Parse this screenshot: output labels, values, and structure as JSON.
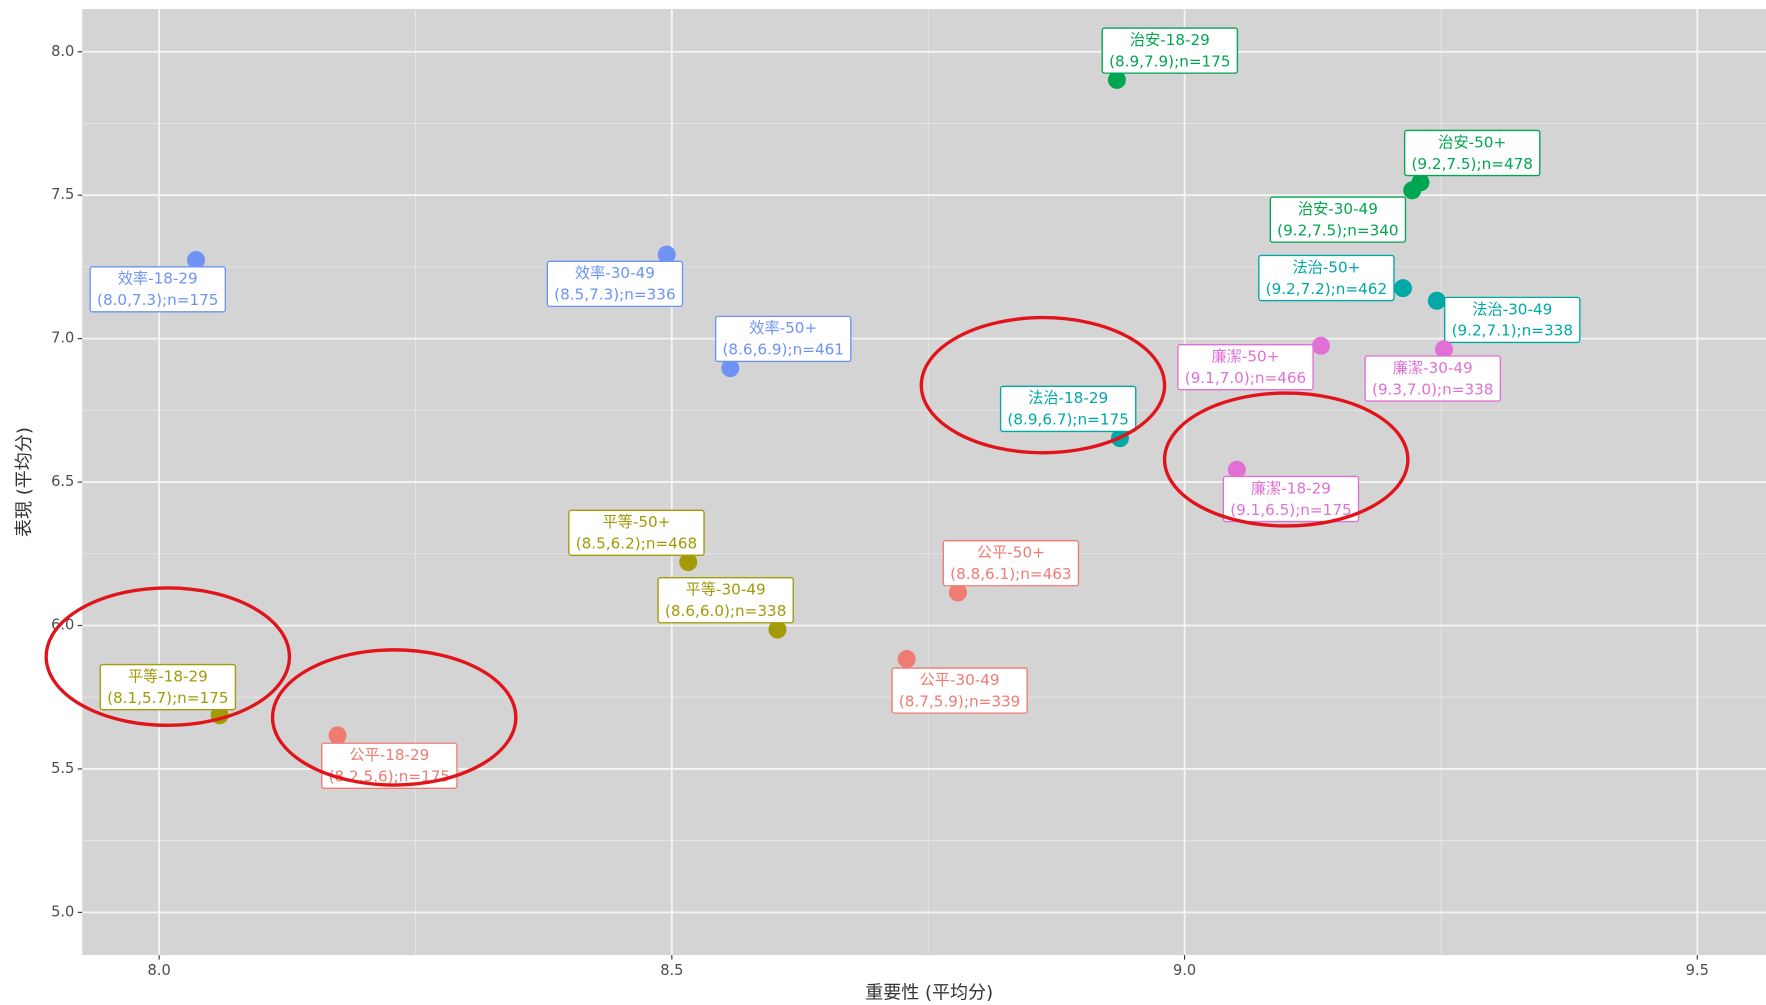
{
  "chart_data": {
    "type": "scatter",
    "x_label": "重要性 (平均分)",
    "y_label": "表現 (平均分)",
    "xlim": [
      7.925,
      9.567
    ],
    "ylim": [
      4.851,
      8.149
    ],
    "xticks": [
      {
        "value": 8,
        "label": "8.0"
      },
      {
        "value": 8.5,
        "label": "8.5"
      },
      {
        "value": 9,
        "label": "9.0"
      },
      {
        "value": 9.5,
        "label": "9.5"
      }
    ],
    "yticks": [
      {
        "value": 5,
        "label": "5.0"
      },
      {
        "value": 5.5,
        "label": "5.5"
      },
      {
        "value": 6,
        "label": "6.0"
      },
      {
        "value": 6.5,
        "label": "6.5"
      },
      {
        "value": 7,
        "label": "7.0"
      },
      {
        "value": 7.5,
        "label": "7.5"
      },
      {
        "value": 8,
        "label": "8.0"
      }
    ],
    "grid": true,
    "series": [
      {
        "color": "#00a650",
        "x": [
          8.934,
          9.23,
          9.222
        ],
        "values": [
          7.902,
          7.545,
          7.517
        ],
        "labels": [
          "治安-18-29",
          "治安-50+",
          "治安-30-49"
        ],
        "stats": [
          "(8.9,7.9);n=175",
          "(9.2,7.5);n=478",
          "(9.2,7.5);n=340"
        ]
      },
      {
        "color": "#00a9a5",
        "x": [
          9.213,
          9.246,
          8.937
        ],
        "values": [
          7.176,
          7.132,
          6.653
        ],
        "labels": [
          "法治-50+",
          "法治-30-49",
          "法治-18-29"
        ],
        "stats": [
          "(9.2,7.2);n=462",
          "(9.2,7.1);n=338",
          "(8.9,6.7);n=175"
        ]
      },
      {
        "color": "#e26fd6",
        "x": [
          9.133,
          9.253,
          9.051
        ],
        "values": [
          6.975,
          6.963,
          6.543
        ],
        "labels": [
          "廉潔-50+",
          "廉潔-30-49",
          "廉潔-18-29"
        ],
        "stats": [
          "(9.1,7.0);n=466",
          "(9.3,7.0);n=338",
          "(9.1,6.5);n=175"
        ]
      },
      {
        "color": "#6e93f5",
        "x": [
          8.036,
          8.495,
          8.557
        ],
        "values": [
          7.274,
          7.293,
          6.897
        ],
        "labels": [
          "效率-18-29",
          "效率-30-49",
          "效率-50+"
        ],
        "stats": [
          "(8.0,7.3);n=175",
          "(8.5,7.3);n=336",
          "(8.6,6.9);n=461"
        ]
      },
      {
        "color": "#a39a08",
        "x": [
          8.516,
          8.603,
          8.059
        ],
        "values": [
          6.221,
          5.986,
          5.687
        ],
        "labels": [
          "平等-50+",
          "平等-30-49",
          "平等-18-29"
        ],
        "stats": [
          "(8.5,6.2);n=468",
          "(8.6,6.0);n=338",
          "(8.1,5.7);n=175"
        ]
      },
      {
        "color": "#ef7b73",
        "x": [
          8.174,
          8.779,
          8.729
        ],
        "values": [
          5.617,
          6.115,
          5.883
        ],
        "labels": [
          "公平-18-29",
          "公平-50+",
          "公平-30-49"
        ],
        "stats": [
          "(8.2,5.6);n=175",
          "(8.8,6.1);n=463",
          "(8.7,5.9);n=339"
        ]
      }
    ]
  }
}
